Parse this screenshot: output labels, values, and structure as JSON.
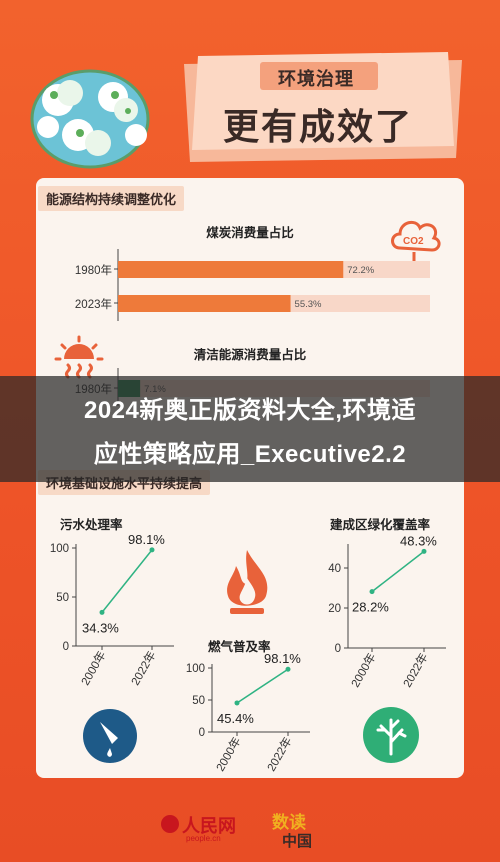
{
  "banner": {
    "line1": "环境治理",
    "line2": "更有成效了"
  },
  "section1": {
    "title": "能源结构持续调整优化"
  },
  "section2": {
    "title": "环境基础设施水平持续提高"
  },
  "overlay": {
    "line1": "2024新奥正版资料大全,环境适",
    "line2": "应性策略应用_Executive2.2"
  },
  "footer": {
    "logo1": "人民网",
    "logo1_sub": "people.cn",
    "logo2_a": "数读",
    "logo2_b": "中国"
  },
  "icons": {
    "co2": "CO2",
    "co2_sub": "2"
  },
  "colors": {
    "accent": "#ee7a3a",
    "track": "#f8d7c8",
    "green": "#2e8b57",
    "line": "#2fb383"
  },
  "chart_data": [
    {
      "type": "bar",
      "title": "煤炭消费量占比",
      "orientation": "horizontal",
      "categories": [
        "1980年",
        "2023年"
      ],
      "values": [
        72.2,
        55.3
      ],
      "labels": [
        "72.2%",
        "55.3%"
      ],
      "xlim": [
        0,
        100
      ]
    },
    {
      "type": "bar",
      "title": "清洁能源消费量占比",
      "orientation": "horizontal",
      "categories": [
        "1980年"
      ],
      "values": [
        7.1
      ],
      "labels": [
        "7.1%"
      ],
      "xlim": [
        0,
        100
      ]
    },
    {
      "type": "line",
      "title": "污水处理率",
      "x": [
        "2000年",
        "2022年"
      ],
      "values": [
        34.3,
        98.1
      ],
      "labels": [
        "34.3%",
        "98.1%"
      ],
      "yticks": [
        "0",
        "50",
        "100"
      ],
      "ylim": [
        0,
        100
      ]
    },
    {
      "type": "line",
      "title": "燃气普及率",
      "x": [
        "2000年",
        "2022年"
      ],
      "values": [
        45.4,
        98.1
      ],
      "labels": [
        "45.4%",
        "98.1%"
      ],
      "yticks": [
        "0",
        "50",
        "100"
      ],
      "ylim": [
        0,
        100
      ]
    },
    {
      "type": "line",
      "title": "建成区绿化覆盖率",
      "x": [
        "2000年",
        "2022年"
      ],
      "values": [
        28.2,
        48.3
      ],
      "labels": [
        "28.2%",
        "48.3%"
      ],
      "yticks": [
        "0",
        "20",
        "40"
      ],
      "ylim": [
        0,
        50
      ]
    }
  ]
}
